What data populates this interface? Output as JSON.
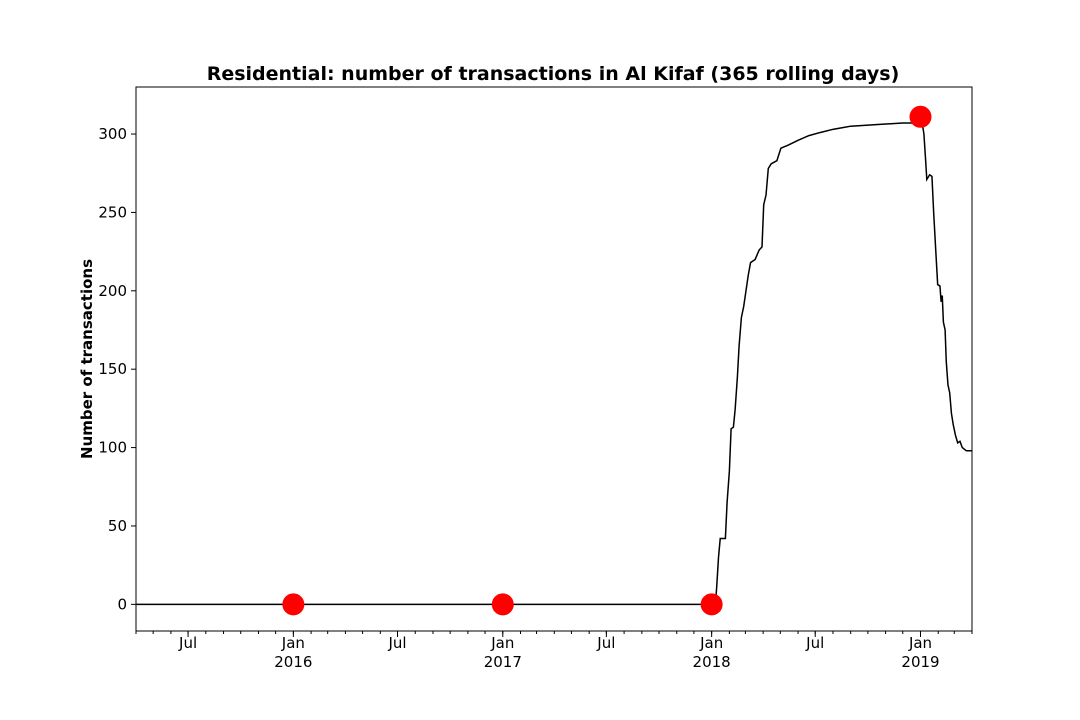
{
  "chart_data": {
    "type": "line",
    "title": "Residential: number of transactions in Al Kifaf (365 rolling days)",
    "xlabel": "",
    "ylabel": "Number of transactions",
    "grid": false,
    "xlim": [
      "2015-04-01",
      "2019-04-01"
    ],
    "ylim": [
      -17,
      330
    ],
    "y_ticks": [
      0,
      50,
      100,
      150,
      200,
      250,
      300
    ],
    "x_ticks": [
      {
        "date": "2015-07-01",
        "label": "Jul",
        "sublabel": ""
      },
      {
        "date": "2016-01-01",
        "label": "Jan",
        "sublabel": "2016"
      },
      {
        "date": "2016-07-01",
        "label": "Jul",
        "sublabel": ""
      },
      {
        "date": "2017-01-01",
        "label": "Jan",
        "sublabel": "2017"
      },
      {
        "date": "2017-07-01",
        "label": "Jul",
        "sublabel": ""
      },
      {
        "date": "2018-01-01",
        "label": "Jan",
        "sublabel": "2018"
      },
      {
        "date": "2018-07-01",
        "label": "Jul",
        "sublabel": ""
      },
      {
        "date": "2019-01-01",
        "label": "Jan",
        "sublabel": "2019"
      }
    ],
    "series": [
      {
        "name": "",
        "color": "#000000",
        "points": [
          [
            "2015-04-01",
            0
          ],
          [
            "2018-01-05",
            0
          ],
          [
            "2018-01-08",
            2
          ],
          [
            "2018-01-10",
            12
          ],
          [
            "2018-01-13",
            30
          ],
          [
            "2018-01-16",
            42
          ],
          [
            "2018-01-25",
            42
          ],
          [
            "2018-01-28",
            65
          ],
          [
            "2018-02-01",
            85
          ],
          [
            "2018-02-04",
            112
          ],
          [
            "2018-02-08",
            113
          ],
          [
            "2018-02-11",
            124
          ],
          [
            "2018-02-15",
            145
          ],
          [
            "2018-02-18",
            165
          ],
          [
            "2018-02-22",
            183
          ],
          [
            "2018-02-26",
            190
          ],
          [
            "2018-03-02",
            200
          ],
          [
            "2018-03-06",
            210
          ],
          [
            "2018-03-10",
            218
          ],
          [
            "2018-03-18",
            220
          ],
          [
            "2018-03-25",
            226
          ],
          [
            "2018-03-30",
            228
          ],
          [
            "2018-04-02",
            255
          ],
          [
            "2018-04-06",
            261
          ],
          [
            "2018-04-10",
            278
          ],
          [
            "2018-04-15",
            281
          ],
          [
            "2018-04-25",
            283
          ],
          [
            "2018-05-02",
            291
          ],
          [
            "2018-05-15",
            293
          ],
          [
            "2018-06-01",
            296
          ],
          [
            "2018-06-20",
            299
          ],
          [
            "2018-07-10",
            301
          ],
          [
            "2018-08-01",
            303
          ],
          [
            "2018-09-01",
            305
          ],
          [
            "2018-10-15",
            306
          ],
          [
            "2018-12-01",
            307
          ],
          [
            "2018-12-28",
            307
          ],
          [
            "2019-01-03",
            309
          ],
          [
            "2019-01-07",
            300
          ],
          [
            "2019-01-10",
            283
          ],
          [
            "2019-01-12",
            271
          ],
          [
            "2019-01-17",
            274
          ],
          [
            "2019-01-21",
            273
          ],
          [
            "2019-01-24",
            250
          ],
          [
            "2019-01-27",
            230
          ],
          [
            "2019-01-31",
            204
          ],
          [
            "2019-02-04",
            203
          ],
          [
            "2019-02-06",
            193
          ],
          [
            "2019-02-08",
            197
          ],
          [
            "2019-02-10",
            180
          ],
          [
            "2019-02-13",
            175
          ],
          [
            "2019-02-15",
            155
          ],
          [
            "2019-02-18",
            140
          ],
          [
            "2019-02-21",
            135
          ],
          [
            "2019-02-24",
            122
          ],
          [
            "2019-02-27",
            115
          ],
          [
            "2019-03-03",
            108
          ],
          [
            "2019-03-07",
            103
          ],
          [
            "2019-03-11",
            104
          ],
          [
            "2019-03-15",
            100
          ],
          [
            "2019-03-22",
            98
          ],
          [
            "2019-04-01",
            98
          ]
        ]
      }
    ],
    "markers": {
      "color": "#ff0000",
      "points": [
        [
          "2016-01-01",
          0
        ],
        [
          "2017-01-01",
          0
        ],
        [
          "2018-01-01",
          0
        ],
        [
          "2019-01-01",
          311
        ]
      ]
    }
  }
}
